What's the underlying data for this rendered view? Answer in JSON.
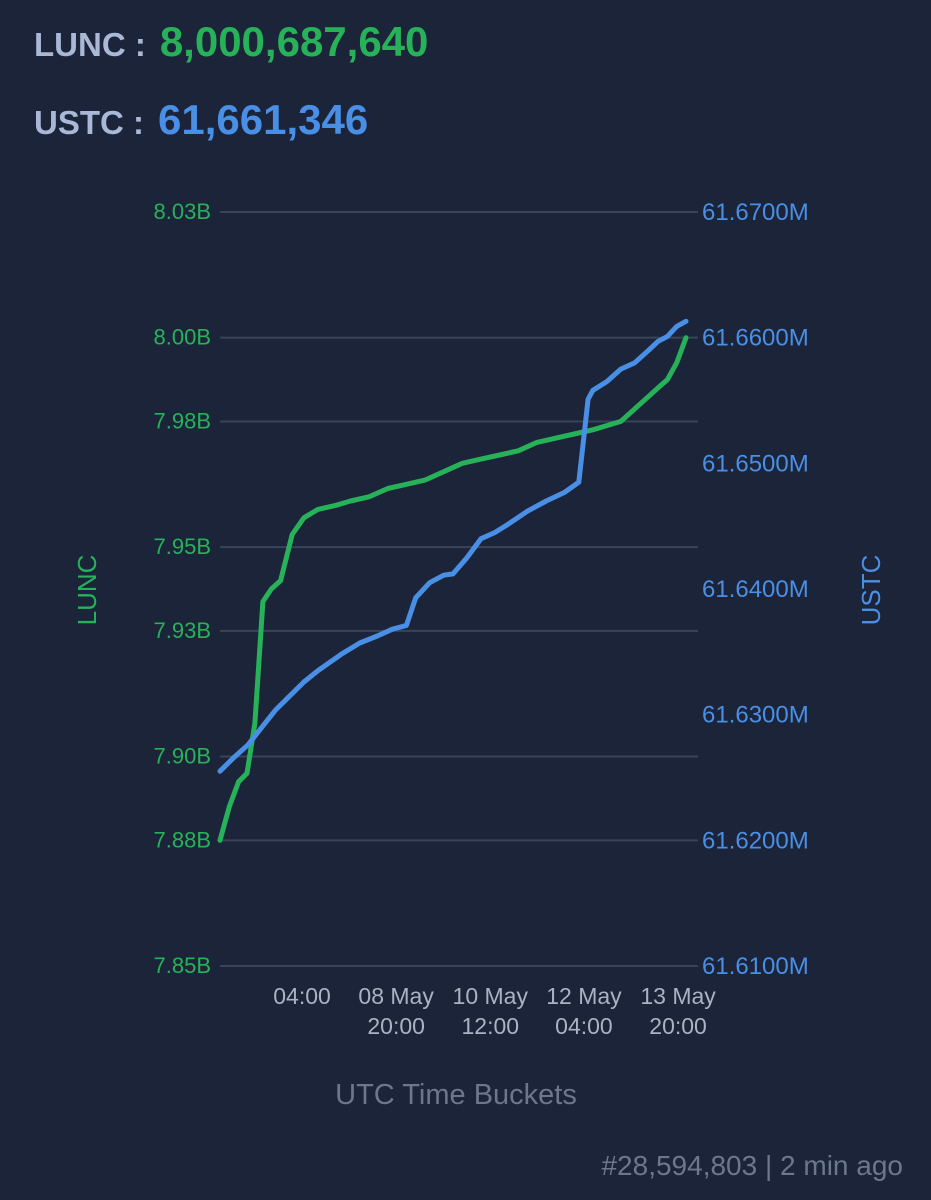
{
  "header": {
    "lunc_label": "LUNC :",
    "lunc_value": "8,000,687,640",
    "ustc_label": "USTC :",
    "ustc_value": "61,661,346"
  },
  "colors": {
    "background": "#1b2438",
    "lunc": "#27b25a",
    "ustc": "#4a8fe6",
    "grid": "#3a4459",
    "axis_text": "#a9b3c5",
    "muted": "#6c778d"
  },
  "chart_data": {
    "type": "line",
    "xlabel": "UTC Time Buckets",
    "x_ticks": [
      {
        "t": 0.176,
        "lines": [
          "04:00"
        ]
      },
      {
        "t": 0.378,
        "lines": [
          "08 May",
          "20:00"
        ]
      },
      {
        "t": 0.58,
        "lines": [
          "10 May",
          "12:00"
        ]
      },
      {
        "t": 0.781,
        "lines": [
          "12 May",
          "04:00"
        ]
      },
      {
        "t": 0.983,
        "lines": [
          "13 May",
          "20:00"
        ]
      }
    ],
    "left_axis": {
      "label": "LUNC",
      "ylim": [
        7.85,
        8.03
      ],
      "ticks": [
        7.85,
        7.88,
        7.9,
        7.93,
        7.95,
        7.98,
        8.0,
        8.03
      ],
      "tick_labels": [
        "7.85B",
        "7.88B",
        "7.90B",
        "7.93B",
        "7.95B",
        "7.98B",
        "8.00B",
        "8.03B"
      ]
    },
    "right_axis": {
      "label": "USTC",
      "ylim": [
        61.61,
        61.67
      ],
      "ticks": [
        61.61,
        61.62,
        61.63,
        61.64,
        61.65,
        61.66,
        61.67
      ],
      "tick_labels": [
        "61.6100M",
        "61.6200M",
        "61.6300M",
        "61.6400M",
        "61.6500M",
        "61.6600M",
        "61.6700M"
      ]
    },
    "series": [
      {
        "name": "LUNC",
        "axis": "left",
        "unit": "B",
        "points": [
          [
            0.0,
            7.88
          ],
          [
            0.02,
            7.888
          ],
          [
            0.04,
            7.894
          ],
          [
            0.058,
            7.896
          ],
          [
            0.075,
            7.908
          ],
          [
            0.092,
            7.937
          ],
          [
            0.11,
            7.94
          ],
          [
            0.13,
            7.942
          ],
          [
            0.155,
            7.953
          ],
          [
            0.18,
            7.957
          ],
          [
            0.21,
            7.959
          ],
          [
            0.25,
            7.96
          ],
          [
            0.28,
            7.961
          ],
          [
            0.32,
            7.962
          ],
          [
            0.36,
            7.964
          ],
          [
            0.4,
            7.965
          ],
          [
            0.44,
            7.966
          ],
          [
            0.48,
            7.968
          ],
          [
            0.52,
            7.97
          ],
          [
            0.56,
            7.971
          ],
          [
            0.6,
            7.972
          ],
          [
            0.64,
            7.973
          ],
          [
            0.68,
            7.975
          ],
          [
            0.72,
            7.976
          ],
          [
            0.76,
            7.977
          ],
          [
            0.8,
            7.978
          ],
          [
            0.83,
            7.979
          ],
          [
            0.86,
            7.98
          ],
          [
            0.88,
            7.982
          ],
          [
            0.9,
            7.984
          ],
          [
            0.92,
            7.986
          ],
          [
            0.94,
            7.988
          ],
          [
            0.96,
            7.99
          ],
          [
            0.98,
            7.994
          ],
          [
            1.0,
            8.0
          ]
        ]
      },
      {
        "name": "USTC",
        "axis": "right",
        "unit": "M",
        "points": [
          [
            0.0,
            61.6255
          ],
          [
            0.03,
            61.6266
          ],
          [
            0.06,
            61.6276
          ],
          [
            0.09,
            61.629
          ],
          [
            0.12,
            61.6304
          ],
          [
            0.15,
            61.6315
          ],
          [
            0.18,
            61.6326
          ],
          [
            0.21,
            61.6335
          ],
          [
            0.26,
            61.6348
          ],
          [
            0.3,
            61.6357
          ],
          [
            0.34,
            61.6363
          ],
          [
            0.37,
            61.6368
          ],
          [
            0.4,
            61.6371
          ],
          [
            0.42,
            61.6393
          ],
          [
            0.45,
            61.6405
          ],
          [
            0.48,
            61.6411
          ],
          [
            0.5,
            61.6412
          ],
          [
            0.53,
            61.6425
          ],
          [
            0.56,
            61.644
          ],
          [
            0.59,
            61.6445
          ],
          [
            0.62,
            61.6452
          ],
          [
            0.66,
            61.6462
          ],
          [
            0.7,
            61.647
          ],
          [
            0.74,
            61.6477
          ],
          [
            0.77,
            61.6485
          ],
          [
            0.79,
            61.6551
          ],
          [
            0.8,
            61.6558
          ],
          [
            0.83,
            61.6565
          ],
          [
            0.86,
            61.6575
          ],
          [
            0.89,
            61.658
          ],
          [
            0.92,
            61.659
          ],
          [
            0.94,
            61.6597
          ],
          [
            0.96,
            61.6601
          ],
          [
            0.98,
            61.6609
          ],
          [
            1.0,
            61.6613
          ]
        ]
      }
    ]
  },
  "footer": {
    "text": "#28,594,803 | 2 min ago"
  }
}
